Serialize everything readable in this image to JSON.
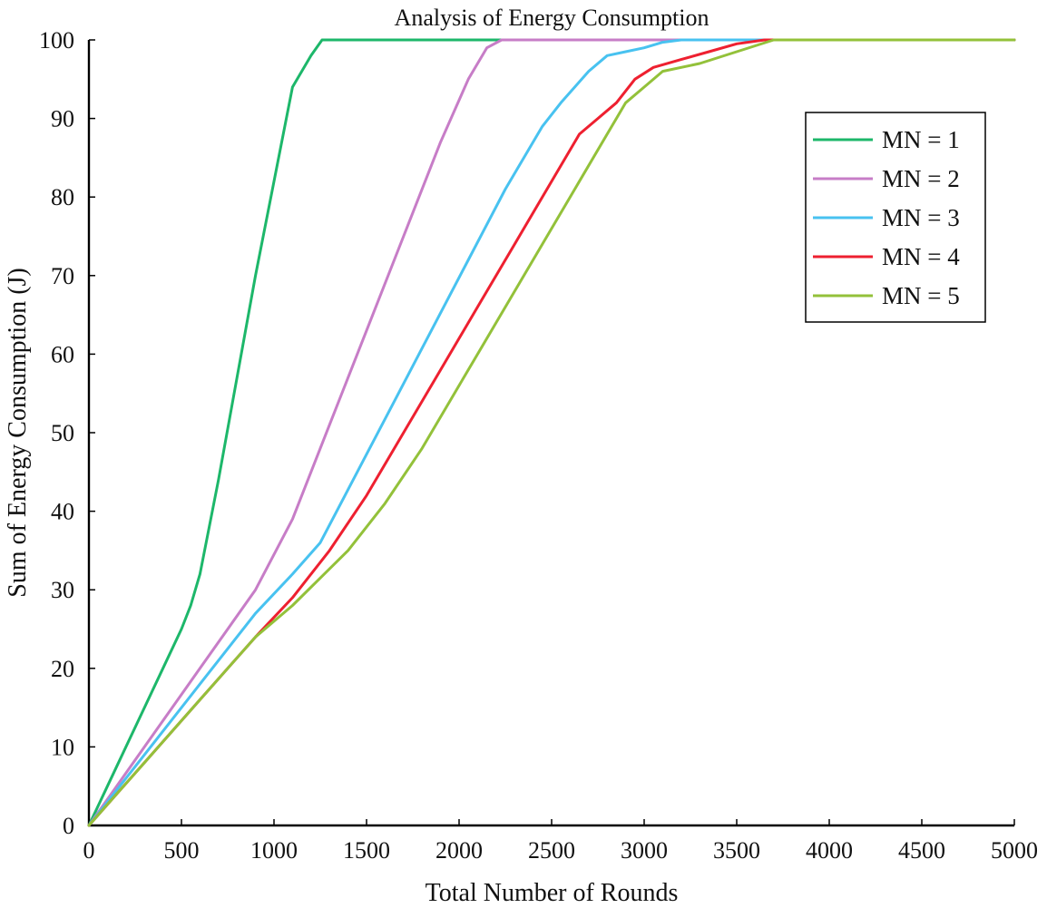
{
  "chart_data": {
    "type": "line",
    "title": "Analysis of Energy Consumption",
    "xlabel": "Total Number of Rounds",
    "ylabel": "Sum of Energy Consumption (J)",
    "xlim": [
      0,
      5000
    ],
    "ylim": [
      0,
      100
    ],
    "xticks": [
      0,
      500,
      1000,
      1500,
      2000,
      2500,
      3000,
      3500,
      4000,
      4500,
      5000
    ],
    "yticks": [
      0,
      10,
      20,
      30,
      40,
      50,
      60,
      70,
      80,
      90,
      100
    ],
    "grid": false,
    "legend_position": "top-right",
    "series": [
      {
        "name": "MN = 1",
        "color": "#1db76a",
        "x": [
          0,
          100,
          200,
          300,
          400,
          500,
          550,
          600,
          700,
          800,
          900,
          1000,
          1050,
          1100,
          1150,
          1200,
          1260,
          1300,
          5000
        ],
        "y": [
          0,
          5,
          10,
          15,
          20,
          25,
          28,
          32,
          44,
          57,
          70,
          82,
          88,
          94,
          96,
          98,
          100,
          100,
          100
        ]
      },
      {
        "name": "MN = 2",
        "color": "#c77dc7",
        "x": [
          0,
          300,
          600,
          900,
          1100,
          1300,
          1500,
          1700,
          1900,
          2050,
          2150,
          2230,
          2300,
          5000
        ],
        "y": [
          0,
          10,
          20,
          30,
          39,
          51,
          63,
          75,
          87,
          95,
          99,
          100,
          100,
          100
        ]
      },
      {
        "name": "MN = 3",
        "color": "#48c2f0",
        "x": [
          0,
          300,
          600,
          900,
          1100,
          1250,
          1450,
          1650,
          1850,
          2050,
          2250,
          2450,
          2550,
          2700,
          2800,
          2900,
          3000,
          3100,
          3200,
          5000
        ],
        "y": [
          0,
          9,
          18,
          27,
          32,
          36,
          45,
          54,
          63,
          72,
          81,
          89,
          92,
          96,
          98,
          98.5,
          99,
          99.7,
          100,
          100
        ]
      },
      {
        "name": "MN = 4",
        "color": "#ee2030",
        "x": [
          0,
          300,
          600,
          900,
          1100,
          1300,
          1500,
          1700,
          1900,
          2100,
          2300,
          2500,
          2650,
          2750,
          2850,
          2950,
          3050,
          3200,
          3350,
          3500,
          3650,
          5000
        ],
        "y": [
          0,
          8,
          16,
          24,
          29,
          35,
          42,
          50,
          58,
          66,
          74,
          82,
          88,
          90,
          92,
          95,
          96.5,
          97.5,
          98.5,
          99.5,
          100,
          100
        ]
      },
      {
        "name": "MN = 5",
        "color": "#93c13a",
        "x": [
          0,
          300,
          600,
          900,
          1100,
          1400,
          1600,
          1800,
          2000,
          2200,
          2400,
          2600,
          2800,
          2900,
          3000,
          3100,
          3300,
          3500,
          3700,
          5000
        ],
        "y": [
          0,
          8,
          16,
          24,
          28,
          35,
          41,
          48,
          56,
          64,
          72,
          80,
          88,
          92,
          94,
          96,
          97,
          98.5,
          100,
          100
        ]
      }
    ]
  }
}
